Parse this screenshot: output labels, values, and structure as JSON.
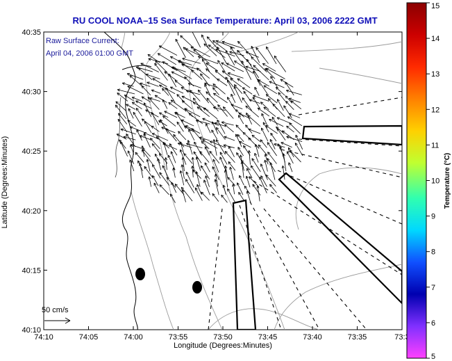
{
  "title": "RU COOL  NOAA–15  Sea Surface Temperature:  April 03, 2006 2222 GMT",
  "annotation": {
    "line1": "Raw Surface Current:",
    "line2": "April 04, 2006 01:00 GMT"
  },
  "scale_label": "50 cm/s",
  "xlabel": "Longitude (Degrees:Minutes)",
  "ylabel": "Latitude (Degrees:Minutes)",
  "x_ticks": [
    "74:10",
    "74:05",
    "74:00",
    "73:55",
    "73:50",
    "73:45",
    "73:40",
    "73:35",
    "73:3"
  ],
  "y_ticks": [
    "40:35",
    "40:30",
    "40:25",
    "40:20",
    "40:15",
    "40:10"
  ],
  "colorbar": {
    "label": "Temperature (°C)",
    "ticks": [
      "15",
      "14",
      "13",
      "12",
      "11",
      "10",
      "9",
      "8",
      "7",
      "6",
      "5"
    ],
    "colors": [
      "#8b0000",
      "#cc0000",
      "#ff2a00",
      "#ff8000",
      "#ffd000",
      "#c0ff30",
      "#30ffb0",
      "#00d8ff",
      "#1050ff",
      "#0000b0",
      "#8030ff",
      "#ff40ff"
    ]
  },
  "icons": [
    "current-vector-field",
    "coastline",
    "bathymetry-contours",
    "radar-coverage-wedges",
    "scale-arrow"
  ]
}
